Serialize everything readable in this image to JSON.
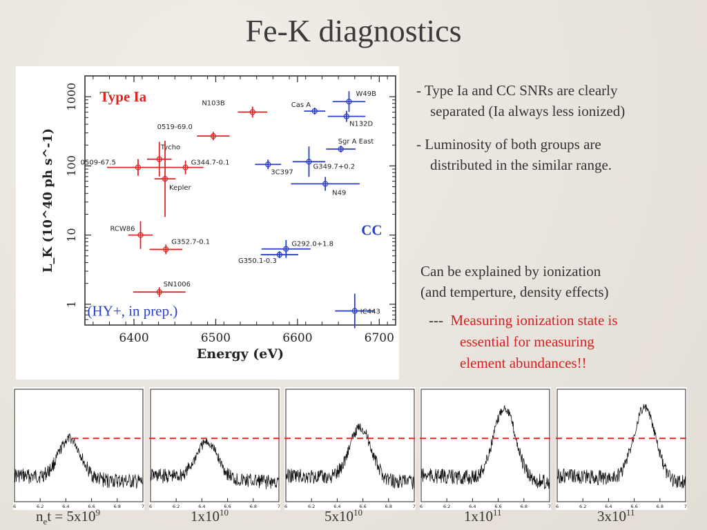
{
  "title": "Fe-K diagnostics",
  "bullets": {
    "b1_line1": "- Type Ia and CC SNRs are clearly",
    "b1_line2": "separated (Ia always less ionized)",
    "b2_line1": "- Luminosity of both groups are",
    "b2_line2": "distributed in the similar range."
  },
  "explain": {
    "line1": "Can be explained by ionization",
    "line2": "(and temperture, density effects)"
  },
  "conclusion": {
    "dash": "---",
    "line1": "Measuring ionization state is",
    "line2": "essential for measuring",
    "line3": "element abundances!!"
  },
  "colors": {
    "type_ia": "#e02424",
    "cc": "#2a3fc8",
    "ref_line": "#e02424"
  },
  "chart_data": [
    {
      "type": "scatter",
      "xlabel": "Energy (eV)",
      "ylabel": "L_K (10^40 ph s^-1)",
      "xlim": [
        6340,
        6720
      ],
      "ylim": [
        0.5,
        2000
      ],
      "yscale": "log",
      "xticks": [
        "6400",
        "6500",
        "6600",
        "6700"
      ],
      "yticks": [
        "1",
        "10",
        "100",
        "1000"
      ],
      "annotations": {
        "type_ia": "Type Ia",
        "cc": "CC",
        "ref": "(HY+, in prep.)"
      },
      "series": [
        {
          "name": "Type Ia",
          "points": [
            {
              "label": "N103B",
              "x": 6545,
              "y": 600,
              "xerr": 18,
              "yerr": 0.08
            },
            {
              "label": "0519-69.0",
              "x": 6497,
              "y": 270,
              "xerr": 20,
              "yerr": 0.06
            },
            {
              "label": "Tycho",
              "x": 6431,
              "y": 125,
              "xerr": 15,
              "yerr": 0.25
            },
            {
              "label": "0509-67.5",
              "x": 6405,
              "y": 95,
              "xerr": 38,
              "yerr": 0.12
            },
            {
              "label": "G344.7-0.1",
              "x": 6463,
              "y": 95,
              "xerr": 22,
              "yerr": 0.1
            },
            {
              "label": "Kepler",
              "x": 6438,
              "y": 65,
              "xerr": 13,
              "yerr": 0.55
            },
            {
              "label": "RCW86",
              "x": 6408,
              "y": 10,
              "xerr": 15,
              "yerr": 0.2
            },
            {
              "label": "G352.7-0.1",
              "x": 6439,
              "y": 6.2,
              "xerr": 20,
              "yerr": 0.07
            },
            {
              "label": "SN1006",
              "x": 6431,
              "y": 1.5,
              "xerr": 32,
              "yerr": 0.07
            }
          ]
        },
        {
          "name": "CC",
          "points": [
            {
              "label": "W49B",
              "x": 6663,
              "y": 850,
              "xerr": 20,
              "yerr": 0.15
            },
            {
              "label": "Cas A",
              "x": 6621,
              "y": 620,
              "xerr": 13,
              "yerr": 0.05
            },
            {
              "label": "N132D",
              "x": 6660,
              "y": 520,
              "xerr": 23,
              "yerr": 0.08
            },
            {
              "label": "Sgr A East",
              "x": 6653,
              "y": 175,
              "xerr": 18,
              "yerr": 0.05
            },
            {
              "label": "3C397",
              "x": 6564,
              "y": 105,
              "xerr": 16,
              "yerr": 0.07
            },
            {
              "label": "G349.7+0.2",
              "x": 6614,
              "y": 115,
              "xerr": 20,
              "yerr": 0.22
            },
            {
              "label": "N49",
              "x": 6634,
              "y": 55,
              "xerr": 42,
              "yerr": 0.1
            },
            {
              "label": "G292.0+1.8",
              "x": 6586,
              "y": 6.3,
              "xerr": 30,
              "yerr": 0.13
            },
            {
              "label": "G350.1-0.3",
              "x": 6578,
              "y": 5.2,
              "xerr": 23,
              "yerr": 0.05
            },
            {
              "label": "IC443",
              "x": 6670,
              "y": 0.8,
              "xerr": 24,
              "yerr": 0.25
            }
          ]
        }
      ]
    },
    {
      "type": "line",
      "description_of_panels": "five model Fe-K line profiles",
      "xlim": [
        6,
        7
      ],
      "xticks": [
        "6",
        "6.2",
        "6.4",
        "6.6",
        "6.8",
        "7"
      ],
      "panels": [
        {
          "label_base": "n",
          "label_sub": "e",
          "label_mid": "t = 5x10",
          "label_sup": "9",
          "peak_x": 6.43,
          "peak_height": 0.55
        },
        {
          "label_base": "1x10",
          "label_sub": "",
          "label_mid": "",
          "label_sup": "10",
          "peak_x": 6.44,
          "peak_height": 0.5
        },
        {
          "label_base": "5x10",
          "label_sub": "",
          "label_mid": "",
          "label_sup": "10",
          "peak_x": 6.58,
          "peak_height": 0.72
        },
        {
          "label_base": "1x10",
          "label_sub": "",
          "label_mid": "",
          "label_sup": "11",
          "peak_x": 6.65,
          "peak_height": 1.0
        },
        {
          "label_base": "3x10",
          "label_sub": "",
          "label_mid": "",
          "label_sup": "11",
          "peak_x": 6.68,
          "peak_height": 1.0
        }
      ]
    }
  ]
}
